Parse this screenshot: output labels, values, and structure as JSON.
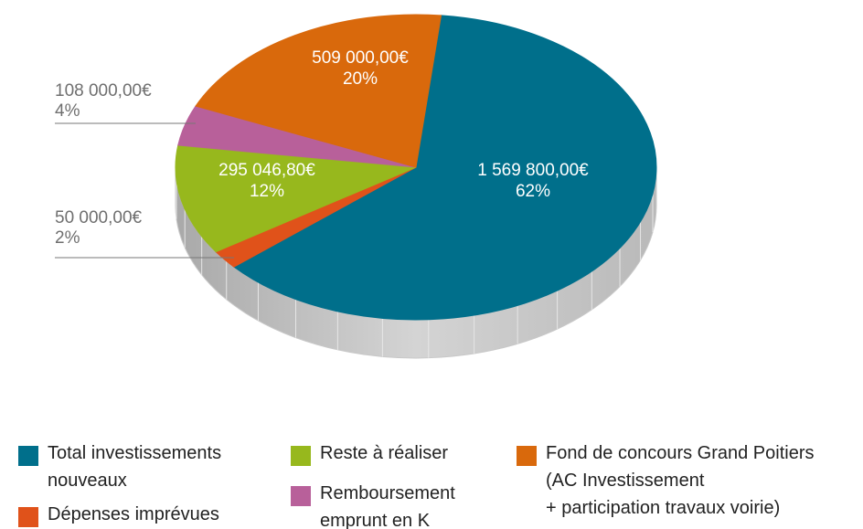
{
  "chart_data": {
    "type": "pie3d",
    "series": [
      {
        "name": "Total investissements nouveaux",
        "color": "#006f8b",
        "values": [
          1569800
        ],
        "value_labels": [
          "1 569 800,00€"
        ],
        "percent_labels": [
          "62%"
        ]
      },
      {
        "name": "Dépenses imprévues",
        "color": "#e0521a",
        "values": [
          50000
        ],
        "value_labels": [
          "50 000,00€"
        ],
        "percent_labels": [
          "2%"
        ]
      },
      {
        "name": "Reste à réaliser",
        "color": "#97b81d",
        "values": [
          295046.8
        ],
        "value_labels": [
          "295 046,80€"
        ],
        "percent_labels": [
          "12%"
        ]
      },
      {
        "name": "Remboursement emprunt en K",
        "color": "#b8609a",
        "values": [
          108000
        ],
        "value_labels": [
          "108 000,00€"
        ],
        "percent_labels": [
          "4%"
        ]
      },
      {
        "name": "Fond de concours Grand Poitiers\n(AC Investissement\n+ participation travaux voirie)",
        "color": "#d9690c",
        "values": [
          509000
        ],
        "value_labels": [
          "509 000,00€"
        ],
        "percent_labels": [
          "20%"
        ]
      }
    ]
  }
}
